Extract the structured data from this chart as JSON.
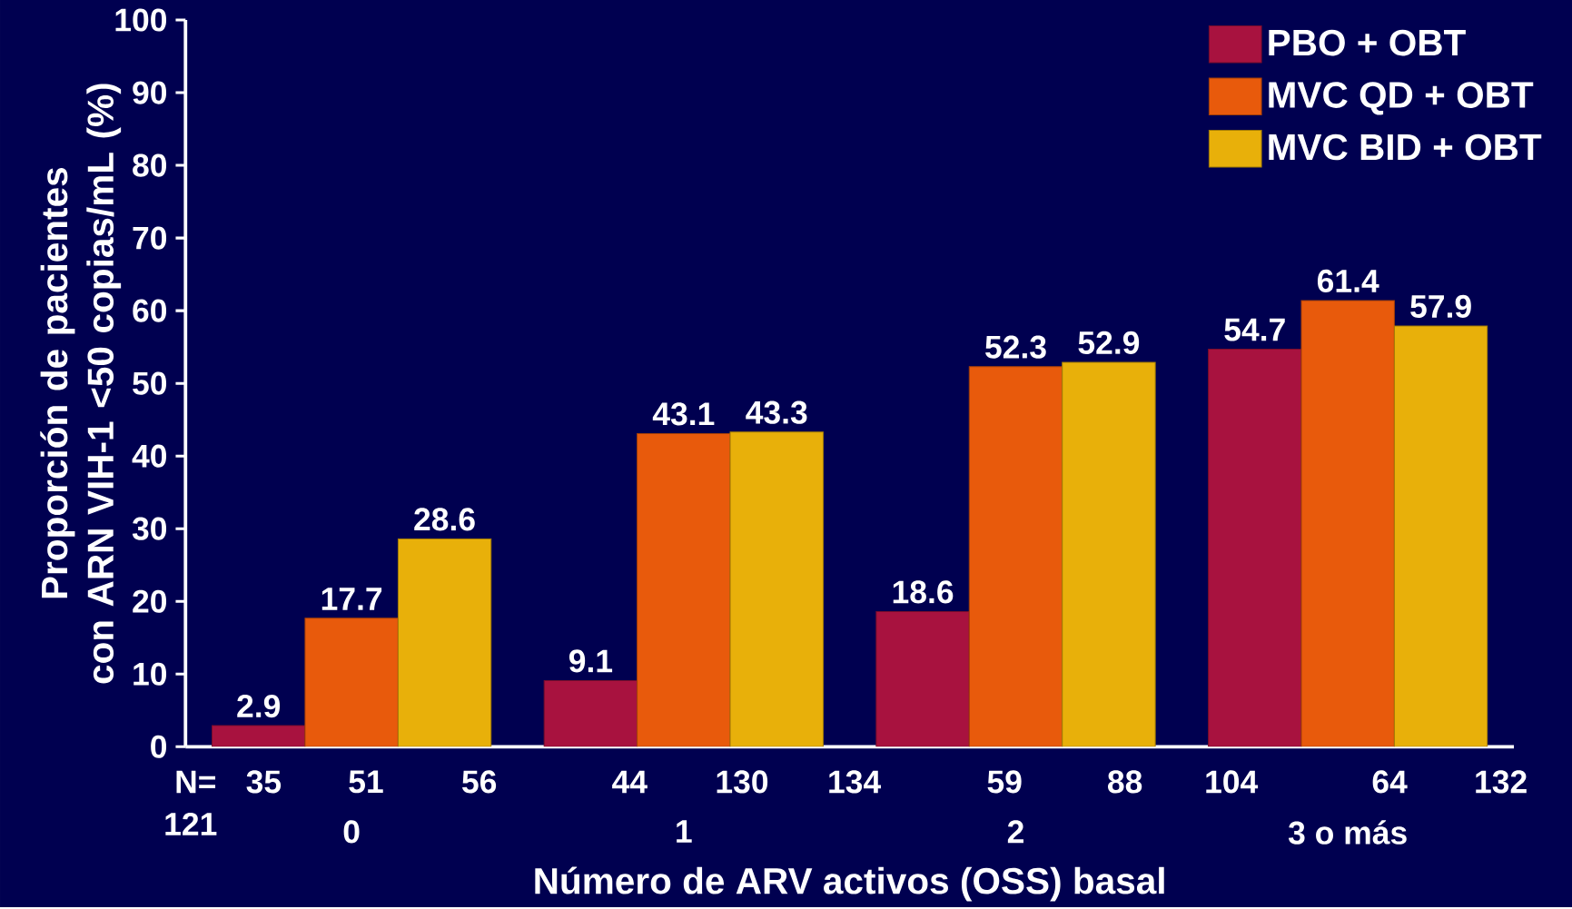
{
  "chart_data": {
    "type": "bar",
    "xlabel": "Número de ARV activos (OSS) basal",
    "ylabel": "Proporción de pacientes con ARN VIH-1 <50 copias/mL (%)",
    "categories": [
      "0",
      "1",
      "2",
      "3 o más"
    ],
    "series": [
      {
        "name": "PBO + OBT",
        "color": "#a8123f",
        "values": [
          2.9,
          9.1,
          18.6,
          54.7
        ]
      },
      {
        "name": "MVC QD + OBT",
        "color": "#e85a0c",
        "values": [
          17.7,
          43.1,
          52.3,
          61.4
        ]
      },
      {
        "name": "MVC BID + OBT",
        "color": "#e8b00a",
        "values": [
          28.6,
          43.3,
          52.9,
          57.9
        ]
      }
    ],
    "ylim": [
      0,
      100
    ],
    "yticks": [
      0,
      10,
      20,
      30,
      40,
      50,
      60,
      70,
      80,
      90,
      100
    ],
    "data_labels": true,
    "legend": "top right",
    "grid": false,
    "annotations": [
      "N=",
      "121",
      "35",
      "51",
      "56",
      "44",
      "130",
      "134",
      "59",
      "88",
      "104",
      "64",
      "132"
    ]
  }
}
